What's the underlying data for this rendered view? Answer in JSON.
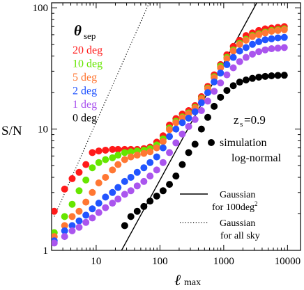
{
  "chart_data": {
    "type": "scatter",
    "title": "",
    "xlabel_main": "ℓ",
    "xlabel_sub": "max",
    "ylabel": "S/N",
    "xscale": "log",
    "yscale": "log",
    "xlim": [
      2,
      16000
    ],
    "ylim": [
      1,
      110
    ],
    "xticks": [
      10,
      100,
      1000,
      10000
    ],
    "xtick_labels": [
      "10",
      "100",
      "1000",
      "10000"
    ],
    "yticks": [
      1,
      10,
      100
    ],
    "ytick_labels": [
      "1",
      "10",
      "100"
    ],
    "grid": false,
    "theta_label": {
      "symbol": "θ",
      "sub": "sep"
    },
    "zs_label": {
      "main": "z",
      "sub": "s",
      "rest": "=0.9"
    },
    "markers_legend": {
      "line1": "simulation",
      "line2": "log-normal"
    },
    "lines_legend": [
      {
        "style": "solid",
        "line1": "Gaussian",
        "line2_main": "for 100deg",
        "line2_sup": "2"
      },
      {
        "style": "dotted",
        "line1": "Gaussian",
        "line2_main": "for all sky",
        "line2_sup": ""
      }
    ],
    "series": [
      {
        "name": "20 deg",
        "color": "#ff1a1a",
        "x": [
          2.2,
          3.2,
          4.2,
          5.4,
          6.9,
          8.7,
          11,
          14,
          18,
          22,
          28,
          35,
          44,
          56,
          70,
          89,
          112,
          141,
          178,
          224,
          282,
          355,
          447,
          562,
          708,
          891,
          1122,
          1413,
          1778,
          2239,
          2818,
          3548,
          4467,
          5623,
          7079,
          8913
        ],
        "y": [
          2.1,
          3.2,
          3.9,
          4.4,
          5.1,
          6.4,
          6.6,
          6.7,
          6.8,
          6.8,
          6.8,
          6.8,
          6.8,
          6.9,
          7.1,
          7.8,
          8.8,
          10.8,
          12.2,
          13.3,
          14.2,
          15.6,
          18.5,
          22.5,
          28,
          34,
          41,
          48,
          54,
          59,
          62,
          65,
          67,
          68,
          69,
          70
        ]
      },
      {
        "name": "10 deg",
        "color": "#66e600",
        "x": [
          2.2,
          3.2,
          4.2,
          5.4,
          6.9,
          8.7,
          11,
          14,
          18,
          22,
          28,
          35,
          44,
          56,
          70,
          89,
          112,
          141,
          178,
          224,
          282,
          355,
          447,
          562,
          708,
          891,
          1122,
          1413,
          1778,
          2239,
          2818,
          3548,
          4467,
          5623,
          7079,
          8913
        ],
        "y": [
          1.4,
          1.9,
          2.4,
          3.1,
          3.8,
          4.8,
          5.3,
          5.6,
          5.8,
          6.1,
          6.4,
          6.5,
          6.6,
          6.7,
          6.9,
          7.4,
          8.3,
          10.2,
          11.6,
          12.6,
          13.6,
          15.1,
          17.9,
          21.8,
          27,
          33,
          39,
          45,
          51,
          55,
          59,
          61,
          63,
          65,
          66,
          67
        ]
      },
      {
        "name": "5 deg",
        "color": "#ff7733",
        "x": [
          2.2,
          3.2,
          4.2,
          5.4,
          6.9,
          8.7,
          11,
          14,
          18,
          22,
          28,
          35,
          44,
          56,
          70,
          89,
          112,
          141,
          178,
          224,
          282,
          355,
          447,
          562,
          708,
          891,
          1122,
          1413,
          1778,
          2239,
          2818,
          3548,
          4467,
          5623,
          7079,
          8913
        ],
        "y": [
          1.3,
          1.6,
          1.9,
          2.1,
          2.5,
          3.0,
          3.6,
          4.0,
          4.6,
          5.1,
          5.6,
          5.9,
          6.1,
          6.3,
          6.5,
          7.0,
          7.9,
          9.9,
          11.3,
          12.4,
          13.4,
          14.9,
          17.7,
          21.5,
          26.5,
          32,
          38,
          44,
          50,
          54,
          58,
          60,
          62,
          64,
          65,
          66
        ]
      },
      {
        "name": "2 deg",
        "color": "#2255ff",
        "x": [
          2.2,
          3.2,
          4.2,
          5.4,
          6.9,
          8.7,
          11,
          14,
          18,
          22,
          28,
          35,
          44,
          56,
          70,
          89,
          112,
          141,
          178,
          224,
          282,
          355,
          447,
          562,
          708,
          891,
          1122,
          1413,
          1778,
          2239,
          2818,
          3548,
          4467,
          5623,
          7079,
          8913
        ],
        "y": [
          1.2,
          1.45,
          1.6,
          1.75,
          1.95,
          2.2,
          2.45,
          2.75,
          3.0,
          3.3,
          3.7,
          4.0,
          4.4,
          4.8,
          5.3,
          5.9,
          7.0,
          8.7,
          10.0,
          11.3,
          12.3,
          13.9,
          16.5,
          20,
          24.5,
          29,
          34,
          39,
          44,
          47,
          50,
          52.5,
          54.5,
          55.5,
          56.5,
          57
        ]
      },
      {
        "name": "1 deg",
        "color": "#aa55ee",
        "x": [
          2.2,
          3.2,
          4.2,
          5.4,
          6.9,
          8.7,
          11,
          14,
          18,
          22,
          28,
          35,
          44,
          56,
          70,
          89,
          112,
          141,
          178,
          224,
          282,
          355,
          447,
          562,
          708,
          891,
          1122,
          1413,
          1778,
          2239,
          2818,
          3548,
          4467,
          5623,
          7079,
          8913
        ],
        "y": [
          1.15,
          1.3,
          1.45,
          1.55,
          1.7,
          1.85,
          2.05,
          2.25,
          2.45,
          2.65,
          2.9,
          3.1,
          3.4,
          3.7,
          4.1,
          4.6,
          5.3,
          6.4,
          7.7,
          9.1,
          10.5,
          12.0,
          14.2,
          17,
          20.5,
          24,
          28,
          32,
          36,
          39,
          41.5,
          43.5,
          45,
          46,
          46.5,
          47
        ]
      },
      {
        "name": "0 deg",
        "color": "#000000",
        "x": [
          28,
          35,
          44,
          56,
          70,
          89,
          112,
          141,
          178,
          224,
          282,
          355,
          447,
          562,
          708,
          891,
          1122,
          1413,
          1778,
          2239,
          2818,
          3548,
          4467,
          5623,
          7079,
          8913
        ],
        "y": [
          1.6,
          1.9,
          2.1,
          2.3,
          2.55,
          2.8,
          3.1,
          3.5,
          4.1,
          5.1,
          6.4,
          7.5,
          10.0,
          12.5,
          15.4,
          18.3,
          20.8,
          22.8,
          24.4,
          25.4,
          26.2,
          26.8,
          27.2,
          27.5,
          27.7,
          27.8
        ]
      }
    ],
    "reference_lines": [
      {
        "name": "Gaussian for 100deg2",
        "style": "solid",
        "x": [
          25,
          3300
        ],
        "y": [
          1,
          110
        ]
      },
      {
        "name": "Gaussian for all sky",
        "style": "dotted",
        "x": [
          2.2,
          68
        ],
        "y": [
          1.9,
          110
        ]
      }
    ]
  }
}
